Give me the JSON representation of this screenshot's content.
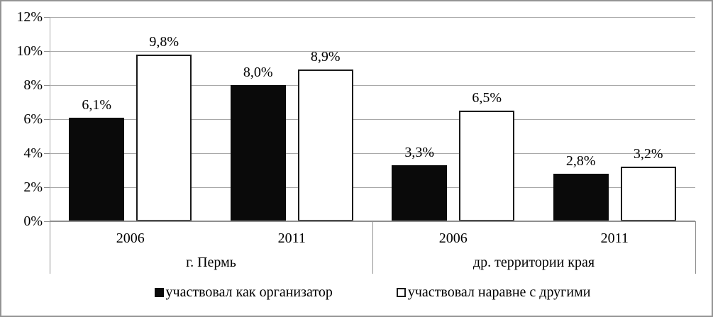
{
  "chart_data": {
    "type": "bar",
    "title": "",
    "xlabel": "",
    "ylabel": "",
    "ylim": [
      0,
      12
    ],
    "ytick_values": [
      0,
      2,
      4,
      6,
      8,
      10,
      12
    ],
    "ytick_labels": [
      "0%",
      "2%",
      "4%",
      "6%",
      "8%",
      "10%",
      "12%"
    ],
    "grid": true,
    "legend_position": "bottom-center",
    "groups": [
      {
        "label": "г. Пермь",
        "categories": [
          "2006",
          "2011"
        ]
      },
      {
        "label": "др. территории края",
        "categories": [
          "2006",
          "2011"
        ]
      }
    ],
    "series": [
      {
        "name": "участвовал как организатор",
        "swatch": "black-filled-square",
        "values": [
          6.1,
          8.0,
          3.3,
          2.8
        ],
        "value_labels": [
          "6,1%",
          "8,0%",
          "3,3%",
          "2,8%"
        ]
      },
      {
        "name": "участвовал наравне с другими",
        "swatch": "white-outlined-square",
        "values": [
          9.8,
          8.9,
          6.5,
          3.2
        ],
        "value_labels": [
          "9,8%",
          "8,9%",
          "6,5%",
          "3,2%"
        ]
      }
    ]
  },
  "colors": {
    "bar_black": "#0a0a0a",
    "bar_white": "#ffffff",
    "bar_border": "#1a1a1a",
    "gridline": "#a8a8a8",
    "axis": "#8f8f8f",
    "text": "#000000",
    "frame": "#949494",
    "background": "#ffffff"
  }
}
